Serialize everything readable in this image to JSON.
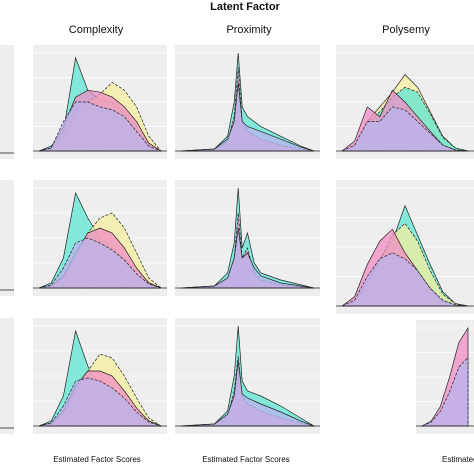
{
  "figure": {
    "title": "Latent Factor",
    "xlabel": "Estimated Factor Scores",
    "columns": [
      "Complexity",
      "Proximity",
      "Polysemy"
    ],
    "colors": {
      "cyan": "#5ee6d2",
      "yellow": "#f4ee9c",
      "pink": "#f08cc4",
      "lavender": "#b9b4ee",
      "panel_bg": "#eeeeee",
      "outline": "#222222"
    }
  },
  "chart_data": [
    {
      "type": "area",
      "panel": "row1-complexity",
      "series": [
        {
          "color": "cyan",
          "x": [
            0,
            0.1,
            0.2,
            0.3,
            0.4,
            0.5,
            0.6,
            0.7,
            0.8,
            0.9,
            1
          ],
          "values": [
            0,
            0.05,
            0.2,
            0.95,
            0.62,
            0.52,
            0.5,
            0.4,
            0.25,
            0.08,
            0
          ]
        },
        {
          "color": "yellow",
          "x": [
            0,
            0.1,
            0.2,
            0.3,
            0.4,
            0.5,
            0.6,
            0.7,
            0.8,
            0.9,
            1
          ],
          "values": [
            0,
            0.02,
            0.15,
            0.4,
            0.5,
            0.58,
            0.7,
            0.62,
            0.45,
            0.15,
            0
          ]
        },
        {
          "color": "pink",
          "x": [
            0,
            0.1,
            0.2,
            0.3,
            0.4,
            0.5,
            0.6,
            0.7,
            0.8,
            0.9,
            1
          ],
          "values": [
            0,
            0.03,
            0.25,
            0.55,
            0.62,
            0.6,
            0.55,
            0.45,
            0.3,
            0.08,
            0
          ]
        },
        {
          "color": "lavender",
          "x": [
            0,
            0.1,
            0.2,
            0.3,
            0.4,
            0.5,
            0.6,
            0.7,
            0.8,
            0.9,
            1
          ],
          "values": [
            0,
            0.03,
            0.3,
            0.5,
            0.5,
            0.45,
            0.42,
            0.35,
            0.2,
            0.05,
            0
          ]
        }
      ]
    },
    {
      "type": "area",
      "panel": "row1-proximity",
      "series": [
        {
          "color": "cyan",
          "x": [
            0,
            0.25,
            0.35,
            0.4,
            0.43,
            0.46,
            0.5,
            0.6,
            0.75,
            0.9,
            1
          ],
          "values": [
            0,
            0.02,
            0.15,
            0.5,
            1.0,
            0.45,
            0.35,
            0.25,
            0.15,
            0.05,
            0
          ]
        },
        {
          "color": "pink",
          "x": [
            0,
            0.25,
            0.35,
            0.4,
            0.43,
            0.46,
            0.5,
            0.6,
            0.75,
            0.9,
            1
          ],
          "values": [
            0,
            0.01,
            0.1,
            0.35,
            0.85,
            0.3,
            0.2,
            0.12,
            0.06,
            0.02,
            0
          ]
        },
        {
          "color": "lavender",
          "x": [
            0,
            0.25,
            0.35,
            0.4,
            0.43,
            0.46,
            0.5,
            0.6,
            0.75,
            0.9,
            1
          ],
          "values": [
            0,
            0.02,
            0.12,
            0.3,
            0.7,
            0.3,
            0.25,
            0.2,
            0.12,
            0.04,
            0
          ]
        }
      ]
    },
    {
      "type": "area",
      "panel": "row1-polysemy",
      "series": [
        {
          "color": "yellow",
          "x": [
            0,
            0.1,
            0.2,
            0.3,
            0.4,
            0.5,
            0.6,
            0.7,
            0.8,
            0.9,
            1
          ],
          "values": [
            0,
            0.05,
            0.3,
            0.45,
            0.6,
            0.78,
            0.65,
            0.4,
            0.15,
            0.03,
            0
          ]
        },
        {
          "color": "cyan",
          "x": [
            0,
            0.1,
            0.2,
            0.3,
            0.4,
            0.5,
            0.6,
            0.7,
            0.8,
            0.9,
            1
          ],
          "values": [
            0,
            0.05,
            0.28,
            0.4,
            0.55,
            0.65,
            0.6,
            0.38,
            0.14,
            0.03,
            0
          ]
        },
        {
          "color": "pink",
          "x": [
            0,
            0.1,
            0.2,
            0.3,
            0.4,
            0.5,
            0.6,
            0.7,
            0.8,
            0.9,
            1
          ],
          "values": [
            0,
            0.1,
            0.45,
            0.35,
            0.62,
            0.5,
            0.35,
            0.2,
            0.06,
            0.01,
            0
          ]
        },
        {
          "color": "lavender",
          "x": [
            0,
            0.1,
            0.2,
            0.3,
            0.4,
            0.5,
            0.6,
            0.7,
            0.8,
            0.9,
            1
          ],
          "values": [
            0,
            0.06,
            0.3,
            0.3,
            0.45,
            0.42,
            0.3,
            0.18,
            0.06,
            0.01,
            0
          ]
        }
      ]
    },
    {
      "type": "area",
      "panel": "row2-complexity",
      "series": [
        {
          "color": "cyan",
          "x": [
            0,
            0.1,
            0.2,
            0.3,
            0.4,
            0.5,
            0.6,
            0.7,
            0.8,
            0.9,
            1
          ],
          "values": [
            0,
            0.05,
            0.3,
            0.95,
            0.7,
            0.5,
            0.4,
            0.3,
            0.18,
            0.06,
            0
          ]
        },
        {
          "color": "yellow",
          "x": [
            0,
            0.1,
            0.2,
            0.3,
            0.4,
            0.5,
            0.6,
            0.7,
            0.8,
            0.9,
            1
          ],
          "values": [
            0,
            0.02,
            0.1,
            0.3,
            0.55,
            0.7,
            0.75,
            0.6,
            0.35,
            0.1,
            0
          ]
        },
        {
          "color": "pink",
          "x": [
            0,
            0.1,
            0.2,
            0.3,
            0.4,
            0.5,
            0.6,
            0.7,
            0.8,
            0.9,
            1
          ],
          "values": [
            0,
            0.02,
            0.12,
            0.35,
            0.55,
            0.6,
            0.55,
            0.4,
            0.2,
            0.05,
            0
          ]
        },
        {
          "color": "lavender",
          "x": [
            0,
            0.1,
            0.2,
            0.3,
            0.4,
            0.5,
            0.6,
            0.7,
            0.8,
            0.9,
            1
          ],
          "values": [
            0,
            0.03,
            0.2,
            0.45,
            0.5,
            0.45,
            0.38,
            0.28,
            0.14,
            0.04,
            0
          ]
        }
      ]
    },
    {
      "type": "area",
      "panel": "row2-proximity",
      "series": [
        {
          "color": "cyan",
          "x": [
            0,
            0.25,
            0.35,
            0.4,
            0.43,
            0.46,
            0.5,
            0.55,
            0.6,
            0.75,
            1
          ],
          "values": [
            0,
            0.02,
            0.15,
            0.45,
            1.0,
            0.4,
            0.55,
            0.25,
            0.15,
            0.08,
            0
          ]
        },
        {
          "color": "pink",
          "x": [
            0,
            0.25,
            0.35,
            0.4,
            0.43,
            0.46,
            0.5,
            0.55,
            0.6,
            0.75,
            1
          ],
          "values": [
            0,
            0.01,
            0.1,
            0.3,
            0.75,
            0.3,
            0.4,
            0.15,
            0.08,
            0.03,
            0
          ]
        },
        {
          "color": "lavender",
          "x": [
            0,
            0.25,
            0.35,
            0.4,
            0.43,
            0.46,
            0.5,
            0.55,
            0.6,
            0.75,
            1
          ],
          "values": [
            0,
            0.02,
            0.1,
            0.3,
            0.6,
            0.3,
            0.35,
            0.2,
            0.12,
            0.05,
            0
          ]
        }
      ]
    },
    {
      "type": "area",
      "panel": "row2-polysemy",
      "series": [
        {
          "color": "cyan",
          "x": [
            0,
            0.1,
            0.2,
            0.3,
            0.4,
            0.5,
            0.6,
            0.7,
            0.8,
            0.9,
            1
          ],
          "values": [
            0,
            0.04,
            0.2,
            0.4,
            0.55,
            0.85,
            0.6,
            0.35,
            0.12,
            0.02,
            0
          ]
        },
        {
          "color": "yellow",
          "x": [
            0,
            0.1,
            0.2,
            0.3,
            0.4,
            0.5,
            0.6,
            0.7,
            0.8,
            0.9,
            1
          ],
          "values": [
            0,
            0.03,
            0.18,
            0.38,
            0.6,
            0.7,
            0.55,
            0.3,
            0.1,
            0.02,
            0
          ]
        },
        {
          "color": "pink",
          "x": [
            0,
            0.1,
            0.2,
            0.3,
            0.4,
            0.5,
            0.6,
            0.7,
            0.8,
            0.9,
            1
          ],
          "values": [
            0,
            0.08,
            0.35,
            0.55,
            0.65,
            0.45,
            0.3,
            0.15,
            0.04,
            0.01,
            0
          ]
        },
        {
          "color": "lavender",
          "x": [
            0,
            0.1,
            0.2,
            0.3,
            0.4,
            0.5,
            0.6,
            0.7,
            0.8,
            0.9,
            1
          ],
          "values": [
            0,
            0.05,
            0.25,
            0.4,
            0.45,
            0.4,
            0.3,
            0.15,
            0.05,
            0.01,
            0
          ]
        }
      ]
    },
    {
      "type": "area",
      "panel": "row3-complexity",
      "series": [
        {
          "color": "cyan",
          "x": [
            0,
            0.1,
            0.2,
            0.3,
            0.4,
            0.5,
            0.6,
            0.7,
            0.8,
            0.9,
            1
          ],
          "values": [
            0,
            0.05,
            0.3,
            0.95,
            0.6,
            0.4,
            0.35,
            0.25,
            0.14,
            0.05,
            0
          ]
        },
        {
          "color": "yellow",
          "x": [
            0,
            0.1,
            0.2,
            0.3,
            0.4,
            0.5,
            0.6,
            0.7,
            0.8,
            0.9,
            1
          ],
          "values": [
            0,
            0.02,
            0.12,
            0.35,
            0.55,
            0.72,
            0.68,
            0.5,
            0.28,
            0.08,
            0
          ]
        },
        {
          "color": "pink",
          "x": [
            0,
            0.1,
            0.2,
            0.3,
            0.4,
            0.5,
            0.6,
            0.7,
            0.8,
            0.9,
            1
          ],
          "values": [
            0,
            0.03,
            0.15,
            0.4,
            0.55,
            0.55,
            0.5,
            0.35,
            0.18,
            0.05,
            0
          ]
        },
        {
          "color": "lavender",
          "x": [
            0,
            0.1,
            0.2,
            0.3,
            0.4,
            0.5,
            0.6,
            0.7,
            0.8,
            0.9,
            1
          ],
          "values": [
            0,
            0.03,
            0.2,
            0.45,
            0.48,
            0.45,
            0.38,
            0.28,
            0.14,
            0.04,
            0
          ]
        }
      ]
    },
    {
      "type": "area",
      "panel": "row3-proximity",
      "series": [
        {
          "color": "cyan",
          "x": [
            0,
            0.25,
            0.35,
            0.4,
            0.43,
            0.46,
            0.5,
            0.6,
            0.75,
            0.9,
            1
          ],
          "values": [
            0,
            0.02,
            0.15,
            0.5,
            1.0,
            0.45,
            0.35,
            0.3,
            0.2,
            0.08,
            0
          ]
        },
        {
          "color": "pink",
          "x": [
            0,
            0.25,
            0.35,
            0.4,
            0.43,
            0.46,
            0.5,
            0.6,
            0.75,
            0.9,
            1
          ],
          "values": [
            0,
            0.01,
            0.1,
            0.35,
            0.7,
            0.3,
            0.22,
            0.15,
            0.08,
            0.03,
            0
          ]
        },
        {
          "color": "lavender",
          "x": [
            0,
            0.25,
            0.35,
            0.4,
            0.43,
            0.46,
            0.5,
            0.6,
            0.75,
            0.9,
            1
          ],
          "values": [
            0,
            0.02,
            0.12,
            0.3,
            0.65,
            0.32,
            0.28,
            0.22,
            0.14,
            0.05,
            0
          ]
        }
      ]
    },
    {
      "type": "area",
      "panel": "row3-polysemy-partial",
      "series": [
        {
          "color": "pink",
          "x": [
            0,
            0.2,
            0.4,
            0.6,
            0.8,
            1
          ],
          "values": [
            0,
            0.05,
            0.2,
            0.5,
            0.85,
            1.0
          ]
        },
        {
          "color": "lavender",
          "x": [
            0,
            0.2,
            0.4,
            0.6,
            0.8,
            1
          ],
          "values": [
            0,
            0.04,
            0.15,
            0.35,
            0.6,
            0.7
          ]
        }
      ]
    }
  ]
}
